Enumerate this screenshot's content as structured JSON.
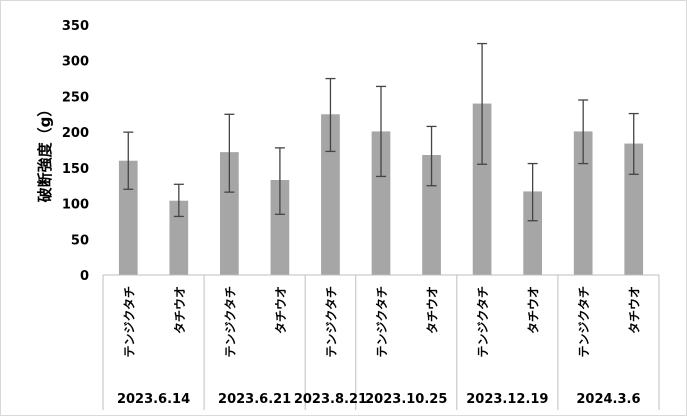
{
  "chart_data": {
    "type": "bar",
    "ylabel": "破断強度（g）",
    "ylim": [
      0,
      350
    ],
    "yticks": [
      0,
      50,
      100,
      150,
      200,
      250,
      300,
      350
    ],
    "grid": false,
    "bar_color": "#a6a6a6",
    "groups": [
      {
        "date": "2023.6.14",
        "items": [
          {
            "category": "テンジクタチ",
            "value": 160,
            "error_low": 120,
            "error_high": 200
          },
          {
            "category": "タチウオ",
            "value": 104,
            "error_low": 82,
            "error_high": 127
          }
        ]
      },
      {
        "date": "2023.6.21",
        "items": [
          {
            "category": "テンジクタチ",
            "value": 172,
            "error_low": 116,
            "error_high": 225
          },
          {
            "category": "タチウオ",
            "value": 133,
            "error_low": 85,
            "error_high": 178
          }
        ]
      },
      {
        "date": "2023.8.21",
        "items": [
          {
            "category": "テンジクタチ",
            "value": 225,
            "error_low": 173,
            "error_high": 275
          }
        ]
      },
      {
        "date": "2023.10.25",
        "items": [
          {
            "category": "テンジクタチ",
            "value": 201,
            "error_low": 138,
            "error_high": 264
          },
          {
            "category": "タチウオ",
            "value": 168,
            "error_low": 125,
            "error_high": 208
          }
        ]
      },
      {
        "date": "2023.12.19",
        "items": [
          {
            "category": "テンジクタチ",
            "value": 240,
            "error_low": 155,
            "error_high": 324
          },
          {
            "category": "タチウオ",
            "value": 117,
            "error_low": 76,
            "error_high": 156
          }
        ]
      },
      {
        "date": "2024.3.6",
        "items": [
          {
            "category": "テンジクタチ",
            "value": 201,
            "error_low": 156,
            "error_high": 245
          },
          {
            "category": "タチウオ",
            "value": 184,
            "error_low": 141,
            "error_high": 226
          }
        ]
      }
    ]
  }
}
